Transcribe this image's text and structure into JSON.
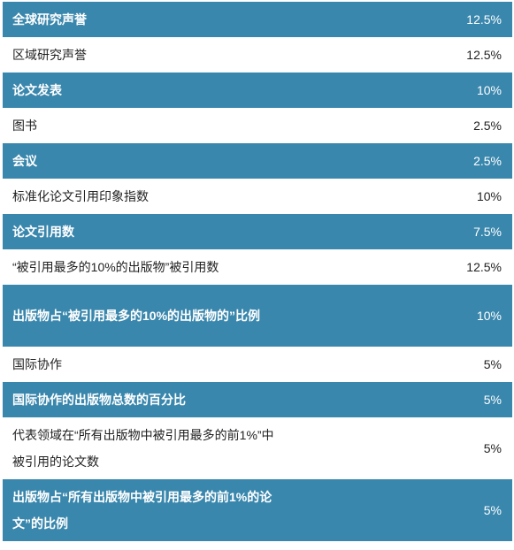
{
  "rows": [
    {
      "label": "全球研究声誉",
      "value": "12.5%",
      "style": "dark"
    },
    {
      "label": "区域研究声誉",
      "value": "12.5%",
      "style": "light"
    },
    {
      "label": "论文发表",
      "value": "10%",
      "style": "dark"
    },
    {
      "label": "图书",
      "value": "2.5%",
      "style": "light"
    },
    {
      "label": "会议",
      "value": "2.5%",
      "style": "dark"
    },
    {
      "label": "标准化论文引用印象指数",
      "value": "10%",
      "style": "light"
    },
    {
      "label": "论文引用数",
      "value": "7.5%",
      "style": "dark"
    },
    {
      "label": "“被引用最多的10%的出版物”被引用数",
      "value": "12.5%",
      "style": "light"
    },
    {
      "label": "出版物占“被引用最多的10%的出版物的”比例",
      "value": "10%",
      "style": "dark tall"
    },
    {
      "label": "国际协作",
      "value": "5%",
      "style": "light"
    },
    {
      "label": "国际协作的出版物总数的百分比",
      "value": "5%",
      "style": "dark"
    },
    {
      "label": "代表领域在“所有出版物中被引用最多的前1%”中被引用的论文数",
      "value": "5%",
      "style": "light tall"
    },
    {
      "label": "出版物占“所有出版物中被引用最多的前1%的论文”的比例",
      "value": "5%",
      "style": "dark tall"
    }
  ]
}
